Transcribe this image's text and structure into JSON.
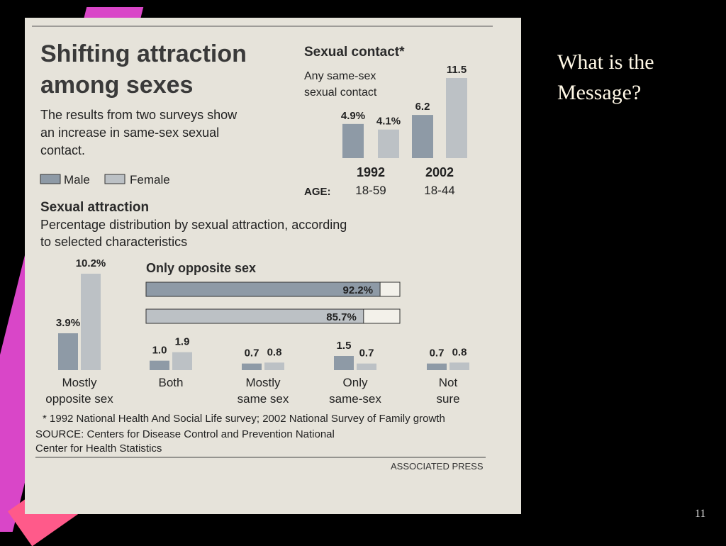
{
  "slide": {
    "title_lines": [
      "What is the",
      "Message?"
    ],
    "page_number": "11"
  },
  "clipping": {
    "headline_lines": [
      "Shifting attraction",
      "among sexes"
    ],
    "intro_lines": [
      "The results from two surveys show",
      "an increase in same-sex sexual",
      "contact."
    ],
    "legend": {
      "male": "Male",
      "female": "Female"
    },
    "footnote": "* 1992 National Health And Social Life survey; 2002 National Survey of Family growth",
    "source_lines": [
      "SOURCE: Centers for Disease Control and Prevention National",
      "Center for Health Statistics"
    ],
    "credit": "ASSOCIATED PRESS",
    "colors": {
      "male": "#8e9aa6",
      "female": "#bcc1c5",
      "paper": "#e6e3da",
      "text": "#222222"
    }
  },
  "chart_data": [
    {
      "type": "bar",
      "title": "Sexual contact*",
      "subtitle_lines": [
        "Any same-sex",
        "sexual contact"
      ],
      "age_label": "AGE:",
      "categories": [
        "1992",
        "2002"
      ],
      "age_ranges": [
        "18-59",
        "18-44"
      ],
      "series": [
        {
          "name": "Male",
          "values": [
            4.9,
            6.2
          ],
          "labels": [
            "4.9%",
            "6.2"
          ]
        },
        {
          "name": "Female",
          "values": [
            4.1,
            11.5
          ],
          "labels": [
            "4.1%",
            "11.5"
          ]
        }
      ],
      "ylim": [
        0,
        11.5
      ]
    },
    {
      "type": "bar",
      "title": "Sexual attraction",
      "subtitle_lines": [
        "Percentage distribution by sexual attraction, according",
        "to selected characteristics"
      ],
      "inset_title": "Only opposite sex",
      "inset": {
        "male": 92.2,
        "female": 85.7,
        "labels": [
          "92.2%",
          "85.7%"
        ]
      },
      "categories": [
        [
          "Mostly",
          "opposite sex"
        ],
        [
          "Both"
        ],
        [
          "Mostly",
          "same sex"
        ],
        [
          "Only",
          "same-sex"
        ],
        [
          "Not",
          "sure"
        ]
      ],
      "series": [
        {
          "name": "Male",
          "values": [
            3.9,
            1.0,
            0.7,
            1.5,
            0.7
          ],
          "labels": [
            "3.9%",
            "1.0",
            "0.7",
            "1.5",
            "0.7"
          ]
        },
        {
          "name": "Female",
          "values": [
            10.2,
            1.9,
            0.8,
            0.7,
            0.8
          ],
          "labels": [
            "10.2%",
            "1.9",
            "0.8",
            "0.7",
            "0.8"
          ]
        }
      ],
      "ylim": [
        0,
        10.2
      ]
    }
  ]
}
